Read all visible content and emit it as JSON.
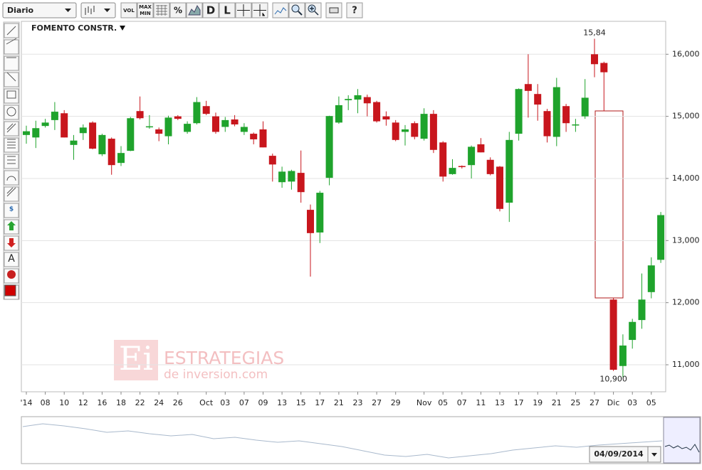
{
  "toolbar": {
    "period": "Diario",
    "vol": "VOL",
    "max": "MAX",
    "min": "MIN",
    "pct": "%",
    "d": "D",
    "l": "L",
    "help": "?"
  },
  "tools": {
    "text": "A",
    "dollar": "$"
  },
  "watermark": {
    "logo": "Ei",
    "line1": "ESTRATEGIAS",
    "line2": "de inversion.com"
  },
  "navigator": {
    "date": "04/09/2014"
  },
  "chart_data": {
    "type": "candlestick",
    "title": "FOMENTO CONSTR.",
    "up_color": "#1fa32c",
    "down_color": "#c8161d",
    "categories": [
      "'14",
      null,
      "08",
      null,
      "10",
      null,
      "12",
      null,
      "16",
      null,
      "18",
      null,
      "22",
      null,
      "24",
      null,
      "26",
      null,
      null,
      "Oct",
      null,
      "03",
      null,
      "07",
      null,
      "09",
      null,
      "13",
      null,
      "15",
      null,
      "17",
      null,
      "21",
      null,
      "23",
      null,
      "27",
      null,
      "29",
      null,
      null,
      "Nov",
      null,
      "05",
      null,
      "07",
      null,
      "11",
      null,
      "13",
      null,
      "17",
      null,
      "19",
      null,
      "21",
      null,
      "25",
      null,
      "27",
      null,
      "Dic",
      null,
      "03",
      null,
      "05",
      null
    ],
    "open": [
      14.7,
      14.66,
      14.845,
      14.94,
      15.05,
      14.54,
      14.73,
      14.9,
      14.39,
      14.64,
      14.25,
      14.445,
      15.085,
      14.83,
      14.79,
      14.68,
      15.0,
      14.75,
      14.89,
      15.165,
      15.0,
      14.83,
      14.95,
      14.75,
      14.72,
      14.79,
      14.365,
      13.94,
      13.95,
      14.09,
      13.495,
      13.13,
      14.01,
      14.9,
      15.26,
      15.27,
      15.31,
      15.23,
      15.0,
      14.9,
      14.75,
      14.89,
      14.64,
      15.04,
      14.58,
      14.07,
      14.2,
      14.215,
      14.55,
      14.3,
      14.19,
      13.61,
      14.72,
      15.52,
      15.36,
      15.085,
      14.67,
      15.165,
      14.86,
      15.0,
      16.0,
      15.86,
      12.05,
      10.98,
      11.4,
      11.72,
      12.17,
      12.69
    ],
    "high": [
      14.85,
      14.93,
      14.96,
      15.23,
      15.1,
      14.7,
      14.87,
      14.92,
      14.72,
      14.66,
      14.52,
      14.99,
      15.32,
      15.02,
      14.82,
      15.01,
      15.02,
      14.92,
      15.31,
      15.25,
      15.06,
      14.99,
      15.02,
      14.89,
      14.74,
      14.92,
      14.4,
      14.19,
      14.14,
      14.45,
      13.58,
      13.8,
      15.01,
      15.32,
      15.34,
      15.44,
      15.35,
      15.25,
      15.08,
      14.94,
      14.86,
      14.92,
      15.13,
      15.1,
      14.6,
      14.31,
      14.21,
      14.53,
      14.65,
      14.34,
      14.2,
      14.75,
      15.45,
      16.0,
      15.52,
      15.12,
      15.62,
      15.2,
      14.96,
      15.6,
      16.25,
      15.88,
      12.08,
      11.49,
      11.74,
      12.47,
      12.73,
      13.46
    ],
    "low": [
      14.56,
      14.49,
      14.82,
      14.78,
      14.66,
      14.3,
      14.62,
      14.47,
      14.36,
      14.06,
      14.2,
      14.44,
      14.95,
      14.8,
      14.6,
      14.55,
      14.94,
      14.72,
      14.87,
      15.02,
      14.72,
      14.75,
      14.84,
      14.7,
      14.55,
      14.5,
      13.95,
      13.85,
      13.82,
      13.61,
      12.42,
      12.96,
      13.89,
      14.88,
      15.1,
      15.05,
      15.0,
      14.9,
      14.85,
      14.6,
      14.53,
      14.63,
      14.61,
      14.41,
      13.95,
      14.06,
      14.16,
      14.0,
      14.42,
      14.05,
      13.47,
      13.3,
      14.61,
      14.98,
      14.93,
      14.58,
      14.52,
      14.75,
      14.75,
      14.96,
      15.63,
      15.09,
      10.9,
      10.8,
      11.26,
      11.58,
      12.07,
      12.64
    ],
    "close": [
      14.76,
      14.81,
      14.9,
      15.075,
      14.66,
      14.61,
      14.82,
      14.48,
      14.7,
      14.215,
      14.41,
      14.97,
      14.97,
      14.84,
      14.72,
      14.98,
      14.96,
      14.88,
      15.23,
      15.04,
      14.75,
      14.94,
      14.87,
      14.83,
      14.63,
      14.5,
      14.225,
      14.11,
      14.12,
      13.78,
      13.12,
      13.77,
      15.005,
      15.18,
      15.28,
      15.34,
      15.21,
      14.92,
      14.95,
      14.62,
      14.79,
      14.67,
      15.04,
      14.46,
      14.03,
      14.17,
      14.19,
      14.51,
      14.42,
      14.07,
      13.51,
      14.62,
      15.44,
      15.41,
      15.19,
      14.68,
      15.47,
      14.89,
      14.87,
      15.3,
      15.84,
      15.71,
      10.92,
      11.31,
      11.69,
      12.05,
      12.6,
      13.41
    ],
    "ylim": [
      10.565,
      16.53
    ],
    "yticks": [
      {
        "value": 11,
        "label": "11,000"
      },
      {
        "value": 12,
        "label": "12,000"
      },
      {
        "value": 13,
        "label": "13,000"
      },
      {
        "value": 14,
        "label": "14,000"
      },
      {
        "value": 15,
        "label": "15,000"
      },
      {
        "value": 16,
        "label": "16,000"
      }
    ],
    "grid": true,
    "annotations": [
      {
        "label": "15,84",
        "value": 15.84
      },
      {
        "label": "10,900",
        "value": 10.9
      }
    ]
  }
}
